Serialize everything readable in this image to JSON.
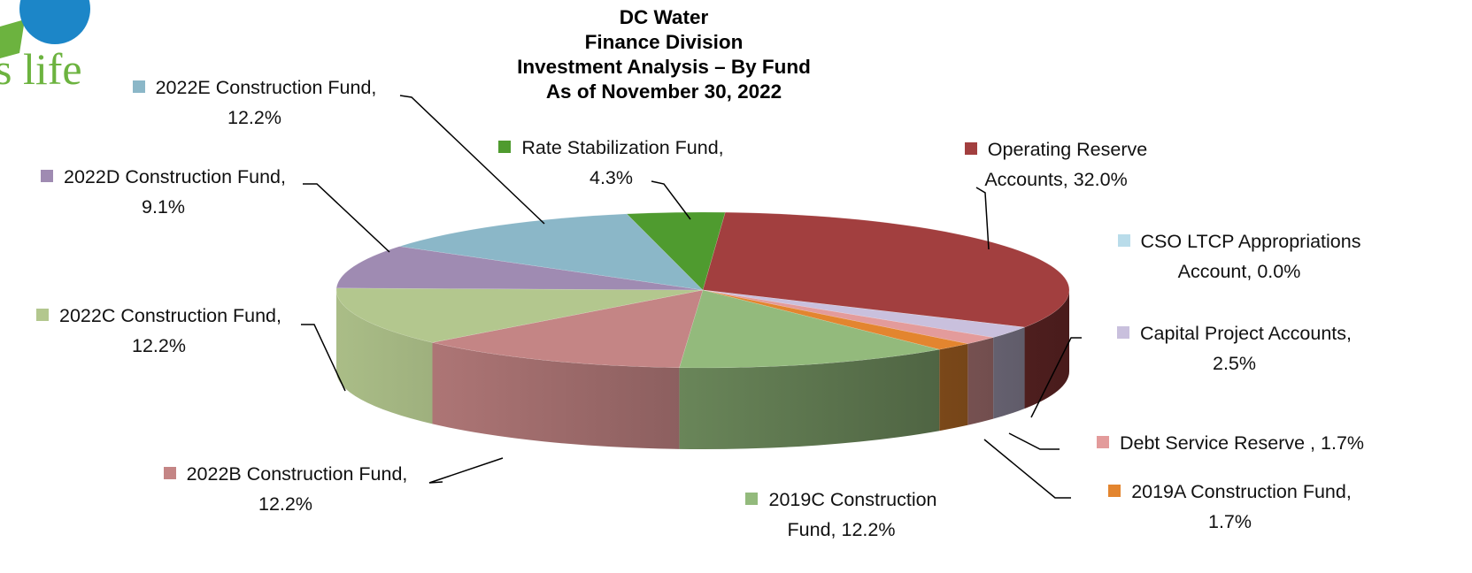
{
  "logo_text": "s life",
  "chart_data": {
    "type": "pie3d",
    "title": [
      "DC Water",
      "Finance Division",
      "Investment Analysis – By Fund",
      "As of November 30, 2022"
    ],
    "categories": [
      "Operating Reserve Accounts,",
      "CSO LTCP Appropriations Account,",
      "Capital Project Accounts,",
      "Debt Service Reserve ,",
      "2019A Construction Fund,",
      "2019C Construction Fund,",
      "2022B Construction Fund,",
      "2022C Construction Fund,",
      "2022D Construction Fund,",
      "2022E Construction Fund,",
      "Rate Stabilization Fund,"
    ],
    "values": [
      32.0,
      0.0,
      2.5,
      1.7,
      1.7,
      12.2,
      12.2,
      12.2,
      9.1,
      12.2,
      4.3
    ],
    "value_labels": [
      "32.0%",
      "0.0%",
      "2.5%",
      "1.7%",
      "1.7%",
      "12.2%",
      "12.2%",
      "12.2%",
      "9.1%",
      "12.2%",
      "4.3%"
    ],
    "colors": [
      "#a23f3f",
      "#b9dcea",
      "#c9c0dd",
      "#e39b9b",
      "#e3852f",
      "#93ba7c",
      "#c48585",
      "#b3c78e",
      "#9f8bb2",
      "#8bb7c8",
      "#4f9b2f"
    ]
  }
}
